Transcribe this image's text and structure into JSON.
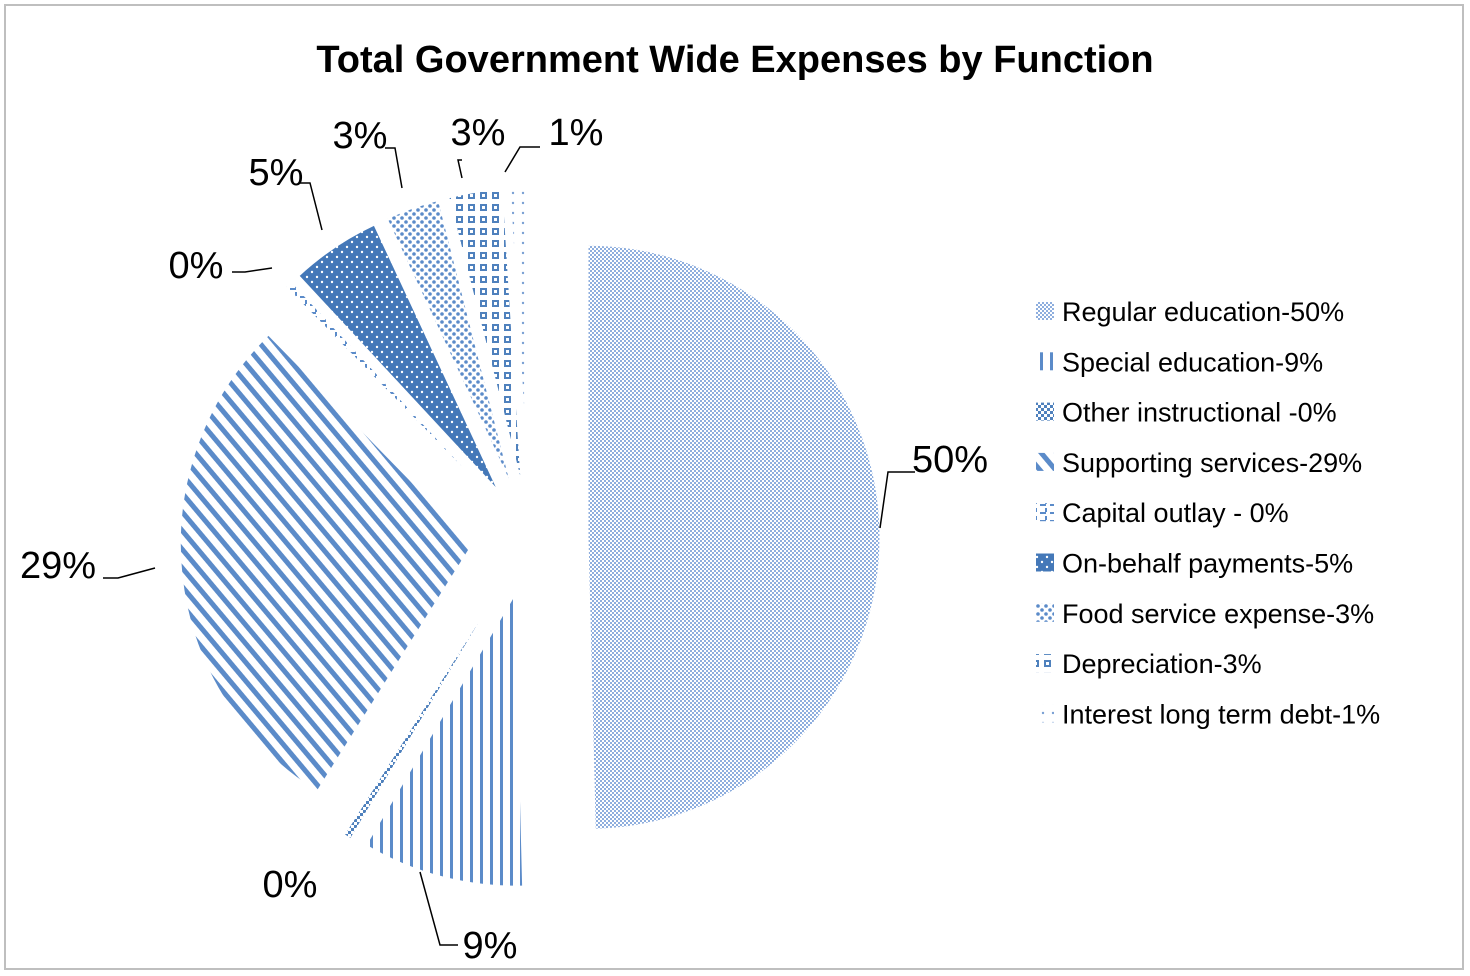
{
  "chart_data": {
    "type": "pie",
    "title": "Total Government Wide Expenses by Function",
    "exploded": true,
    "start_angle_deg": 0,
    "direction": "clockwise",
    "slices": [
      {
        "label": "Regular education-50%",
        "value": 50,
        "data_label": "50%",
        "pattern": "fine-dots"
      },
      {
        "label": "Special education-9%",
        "value": 9,
        "data_label": "9%",
        "pattern": "vertical-lines"
      },
      {
        "label": "Other instructional -0%",
        "value": 0.4,
        "data_label": "0%",
        "pattern": "checker"
      },
      {
        "label": "Supporting services-29%",
        "value": 29,
        "data_label": "29%",
        "pattern": "diagonal-lines"
      },
      {
        "label": "Capital outlay - 0%",
        "value": 0.4,
        "data_label": "0%",
        "pattern": "dashes"
      },
      {
        "label": "On-behalf payments-5%",
        "value": 5,
        "data_label": "5%",
        "pattern": "dark-dots"
      },
      {
        "label": "Food service expense-3%",
        "value": 3,
        "data_label": "3%",
        "pattern": "light-dots"
      },
      {
        "label": "Depreciation-3%",
        "value": 3,
        "data_label": "3%",
        "pattern": "grid"
      },
      {
        "label": "Interest long term debt-1%",
        "value": 1,
        "data_label": "1%",
        "pattern": "sparse-dots"
      }
    ],
    "legend_position": "right",
    "colors": {
      "primary": "#4f81bd",
      "light": "#9dbbe0",
      "background": "#ffffff"
    }
  }
}
